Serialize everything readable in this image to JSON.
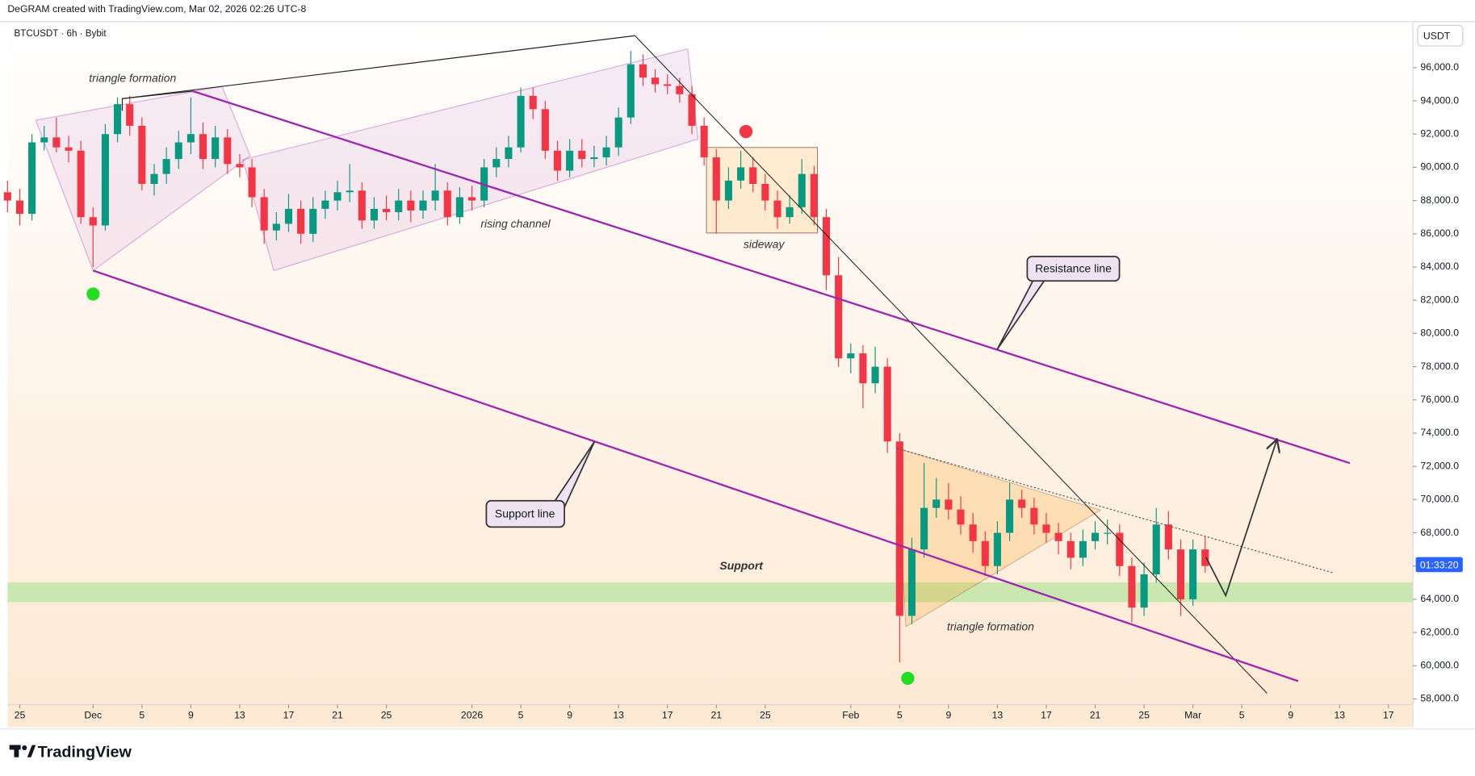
{
  "header": {
    "caption": "DeGRAM created with TradingView.com, Mar 02, 2026 02:26 UTC-8"
  },
  "chart_data": {
    "type": "candlestick",
    "symbol": "BTCUSDT · 6h · Bybit",
    "currency": "USDT",
    "countdown": "01:33:20",
    "up_color": "#089981",
    "down_color": "#f23645",
    "grid": false,
    "annotations": {
      "triangle_left": "triangle formation",
      "rising_channel": "rising channel",
      "sideway": "sideway",
      "resistance": "Resistance line",
      "support_line": "Support line",
      "support": "Support",
      "triangle_right": "triangle formation"
    },
    "xlim": [
      -1,
      114
    ],
    "ylim": [
      57660,
      98714
    ],
    "xticks": [
      {
        "value": 0,
        "label": "25"
      },
      {
        "value": 6,
        "label": "Dec"
      },
      {
        "value": 10,
        "label": "5"
      },
      {
        "value": 14,
        "label": "9"
      },
      {
        "value": 18,
        "label": "13"
      },
      {
        "value": 22,
        "label": "17"
      },
      {
        "value": 26,
        "label": "21"
      },
      {
        "value": 30,
        "label": "25"
      },
      {
        "value": 37,
        "label": "2026"
      },
      {
        "value": 41,
        "label": "5"
      },
      {
        "value": 45,
        "label": "9"
      },
      {
        "value": 49,
        "label": "13"
      },
      {
        "value": 53,
        "label": "17"
      },
      {
        "value": 57,
        "label": "21"
      },
      {
        "value": 61,
        "label": "25"
      },
      {
        "value": 68,
        "label": "Feb"
      },
      {
        "value": 72,
        "label": "5"
      },
      {
        "value": 76,
        "label": "9"
      },
      {
        "value": 80,
        "label": "13"
      },
      {
        "value": 84,
        "label": "17"
      },
      {
        "value": 88,
        "label": "21"
      },
      {
        "value": 92,
        "label": "25"
      },
      {
        "value": 96,
        "label": "Mar"
      },
      {
        "value": 100,
        "label": "5"
      },
      {
        "value": 104,
        "label": "9"
      },
      {
        "value": 108,
        "label": "13"
      },
      {
        "value": 112,
        "label": "17"
      }
    ],
    "yticks": [
      {
        "value": 58000,
        "label": "58,000.0"
      },
      {
        "value": 60000,
        "label": "60,000.0"
      },
      {
        "value": 62000,
        "label": "62,000.0"
      },
      {
        "value": 64000,
        "label": "64,000.0"
      },
      {
        "value": 66000,
        "label": "66,000.0"
      },
      {
        "value": 68000,
        "label": "68,000.0"
      },
      {
        "value": 70000,
        "label": "70,000.0"
      },
      {
        "value": 72000,
        "label": "72,000.0"
      },
      {
        "value": 74000,
        "label": "74,000.0"
      },
      {
        "value": 76000,
        "label": "76,000.0"
      },
      {
        "value": 78000,
        "label": "78,000.0"
      },
      {
        "value": 80000,
        "label": "80,000.0"
      },
      {
        "value": 82000,
        "label": "82,000.0"
      },
      {
        "value": 84000,
        "label": "84,000.0"
      },
      {
        "value": 86000,
        "label": "86,000.0"
      },
      {
        "value": 88000,
        "label": "88,000.0"
      },
      {
        "value": 90000,
        "label": "90,000.0"
      },
      {
        "value": 92000,
        "label": "92,000.0"
      },
      {
        "value": 94000,
        "label": "94,000.0"
      },
      {
        "value": 96000,
        "label": "96,000.0"
      }
    ],
    "x": [
      -1,
      0,
      1,
      2,
      3,
      4,
      5,
      6,
      7,
      8,
      9,
      10,
      11,
      12,
      13,
      14,
      15,
      16,
      17,
      18,
      19,
      20,
      21,
      22,
      23,
      24,
      25,
      26,
      27,
      28,
      29,
      30,
      31,
      32,
      33,
      34,
      35,
      36,
      37,
      38,
      39,
      40,
      41,
      42,
      43,
      44,
      45,
      46,
      47,
      48,
      49,
      50,
      51,
      52,
      53,
      54,
      55,
      56,
      57,
      58,
      59,
      60,
      61,
      62,
      63,
      64,
      65,
      66,
      67,
      68,
      69,
      70,
      71,
      72,
      73,
      74,
      75,
      76,
      77,
      78,
      79,
      80,
      81,
      82,
      83,
      84,
      85,
      86,
      87,
      88,
      89,
      90,
      91,
      92,
      93,
      94,
      95,
      96,
      97
    ],
    "open": [
      88500,
      88000,
      87200,
      91500,
      91800,
      91200,
      91000,
      87000,
      86500,
      92000,
      93800,
      92500,
      89000,
      89600,
      90500,
      91500,
      92000,
      90500,
      91800,
      90200,
      90000,
      88200,
      86200,
      86600,
      87500,
      86000,
      87500,
      88000,
      88500,
      88600,
      86800,
      87500,
      87300,
      88000,
      87400,
      88000,
      88600,
      87000,
      88200,
      88000,
      90000,
      90500,
      91200,
      94300,
      93500,
      91000,
      89800,
      91000,
      90500,
      90600,
      91200,
      93000,
      96200,
      95400,
      95000,
      94900,
      94400,
      92500,
      90600,
      88000,
      89200,
      90000,
      89000,
      88000,
      87000,
      87600,
      89600,
      87000,
      83500,
      78500,
      78800,
      77000,
      78000,
      73500,
      63000,
      67000,
      69500,
      70000,
      69400,
      68500,
      67500,
      66000,
      68000,
      70000,
      69500,
      68500,
      68000,
      67500,
      66500,
      67500,
      68000,
      68000,
      66000,
      63500,
      65500,
      68500,
      67000,
      64000,
      67000
    ],
    "high": [
      89200,
      88700,
      92000,
      92500,
      93000,
      91900,
      91600,
      87600,
      92600,
      94200,
      94300,
      93000,
      90200,
      91200,
      92200,
      94200,
      92700,
      92500,
      92300,
      90800,
      90500,
      88700,
      87300,
      88400,
      88000,
      88200,
      88600,
      89200,
      90200,
      89100,
      88200,
      88300,
      88700,
      88600,
      88600,
      90200,
      89100,
      88800,
      88900,
      90500,
      91200,
      91900,
      94800,
      94800,
      94000,
      91600,
      91700,
      91700,
      91300,
      91900,
      93600,
      97000,
      96800,
      95900,
      95600,
      95400,
      94900,
      93000,
      91100,
      90000,
      91000,
      90600,
      89600,
      88600,
      88300,
      90500,
      90100,
      87500,
      84600,
      79400,
      79300,
      79200,
      78500,
      74000,
      67700,
      72200,
      71300,
      71000,
      70200,
      69200,
      68100,
      68700,
      71000,
      70600,
      70100,
      69200,
      68600,
      68000,
      68200,
      68700,
      68800,
      68500,
      66500,
      66200,
      69500,
      69300,
      67600,
      67600,
      67800
    ],
    "low": [
      87300,
      86500,
      86800,
      91000,
      90900,
      90300,
      86600,
      84000,
      86200,
      91500,
      91900,
      88600,
      88300,
      89000,
      89900,
      90800,
      89900,
      90000,
      89600,
      89400,
      87600,
      85400,
      85600,
      86100,
      85400,
      85500,
      86900,
      87400,
      87900,
      86300,
      86300,
      86800,
      86800,
      86700,
      86900,
      87400,
      86500,
      86600,
      87400,
      87600,
      89400,
      90000,
      90900,
      92900,
      90500,
      89200,
      89400,
      90000,
      90000,
      90100,
      90700,
      92600,
      94900,
      94500,
      94400,
      93900,
      92000,
      90100,
      86000,
      87500,
      88700,
      88500,
      87400,
      86300,
      86600,
      87200,
      86500,
      82600,
      78000,
      77600,
      75500,
      76400,
      72800,
      60200,
      62500,
      66500,
      68900,
      68800,
      67900,
      66800,
      65400,
      65500,
      67500,
      68900,
      67900,
      67400,
      66700,
      65800,
      66000,
      67000,
      67300,
      65400,
      62600,
      63000,
      65000,
      66400,
      63000,
      63600,
      65600
    ],
    "close": [
      88000,
      87200,
      91500,
      91800,
      91200,
      91000,
      87000,
      86500,
      92000,
      93800,
      92500,
      89000,
      89600,
      90500,
      91500,
      92000,
      90500,
      91800,
      90200,
      90000,
      88200,
      86200,
      86600,
      87500,
      86000,
      87500,
      88000,
      88500,
      88600,
      86800,
      87500,
      87300,
      88000,
      87400,
      88000,
      88600,
      87000,
      88200,
      88000,
      90000,
      90500,
      91200,
      94300,
      93500,
      91000,
      89800,
      91000,
      90500,
      90600,
      91200,
      93000,
      96200,
      95400,
      95000,
      94900,
      94400,
      92500,
      90600,
      88000,
      89200,
      90000,
      89000,
      88000,
      87000,
      87600,
      89600,
      87000,
      83500,
      78500,
      78800,
      77000,
      78000,
      73500,
      63000,
      67000,
      69500,
      70000,
      69400,
      68500,
      67500,
      66000,
      68000,
      70000,
      69500,
      68500,
      68000,
      67500,
      66500,
      67500,
      68000,
      68000,
      66000,
      63500,
      65500,
      68500,
      67000,
      64000,
      67000,
      66000
    ]
  },
  "footer": {
    "logo": "TradingView"
  }
}
